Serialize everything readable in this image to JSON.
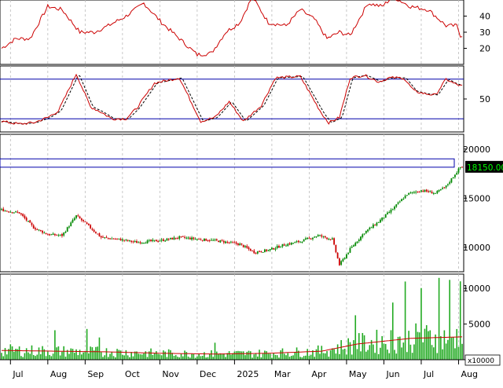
{
  "chart_data": {
    "type": "multi-panel-stock-chart",
    "months": [
      {
        "label": "Jul",
        "index": 5
      },
      {
        "label": "Aug",
        "index": 26
      },
      {
        "label": "Sep",
        "index": 47
      },
      {
        "label": "Oct",
        "index": 68
      },
      {
        "label": "Nov",
        "index": 89
      },
      {
        "label": "Dec",
        "index": 110
      },
      {
        "label": "2025",
        "index": 131
      },
      {
        "label": "Mar",
        "index": 152
      },
      {
        "label": "Apr",
        "index": 173
      },
      {
        "label": "May",
        "index": 194
      },
      {
        "label": "Jun",
        "index": 215
      },
      {
        "label": "Jul",
        "index": 236
      },
      {
        "label": "Aug",
        "index": 257
      }
    ],
    "n_bars": 260,
    "panels": {
      "rsi": {
        "ylim": [
          10,
          50
        ],
        "ticks": [
          20,
          30,
          40
        ],
        "anchors": [
          [
            0,
            20
          ],
          [
            8,
            26
          ],
          [
            16,
            26
          ],
          [
            26,
            46
          ],
          [
            34,
            44
          ],
          [
            44,
            30
          ],
          [
            52,
            30
          ],
          [
            60,
            34
          ],
          [
            70,
            40
          ],
          [
            80,
            48
          ],
          [
            90,
            36
          ],
          [
            100,
            26
          ],
          [
            110,
            16
          ],
          [
            118,
            17
          ],
          [
            126,
            30
          ],
          [
            134,
            36
          ],
          [
            141,
            52
          ],
          [
            150,
            36
          ],
          [
            160,
            34
          ],
          [
            168,
            44
          ],
          [
            176,
            38
          ],
          [
            183,
            26
          ],
          [
            190,
            30
          ],
          [
            196,
            28
          ],
          [
            206,
            48
          ],
          [
            214,
            46
          ],
          [
            220,
            52
          ],
          [
            230,
            46
          ],
          [
            240,
            44
          ],
          [
            250,
            34
          ],
          [
            256,
            34
          ],
          [
            258,
            28
          ]
        ]
      },
      "stoch": {
        "ylim": [
          0,
          100
        ],
        "ticks": [
          50
        ],
        "upper_level": 80,
        "lower_level": 20,
        "anchors": [
          [
            0,
            16
          ],
          [
            10,
            12
          ],
          [
            18,
            14
          ],
          [
            26,
            22
          ],
          [
            32,
            32
          ],
          [
            42,
            88
          ],
          [
            50,
            38
          ],
          [
            56,
            30
          ],
          [
            62,
            20
          ],
          [
            70,
            20
          ],
          [
            76,
            36
          ],
          [
            86,
            74
          ],
          [
            100,
            82
          ],
          [
            112,
            16
          ],
          [
            120,
            22
          ],
          [
            128,
            46
          ],
          [
            136,
            16
          ],
          [
            146,
            40
          ],
          [
            154,
            82
          ],
          [
            168,
            84
          ],
          [
            180,
            28
          ],
          [
            184,
            14
          ],
          [
            190,
            22
          ],
          [
            196,
            82
          ],
          [
            204,
            86
          ],
          [
            212,
            76
          ],
          [
            218,
            82
          ],
          [
            226,
            82
          ],
          [
            232,
            62
          ],
          [
            238,
            58
          ],
          [
            244,
            56
          ],
          [
            250,
            80
          ],
          [
            254,
            74
          ],
          [
            258,
            70
          ]
        ]
      },
      "price": {
        "ylim": [
          7500,
          21500
        ],
        "ticks": [
          10000,
          15000,
          20000
        ],
        "last_value_label": "18150.00",
        "resistance_band": [
          18150,
          19000
        ],
        "anchors": [
          [
            0,
            13800
          ],
          [
            10,
            13500
          ],
          [
            18,
            12000
          ],
          [
            26,
            11300
          ],
          [
            34,
            11200
          ],
          [
            42,
            13200
          ],
          [
            48,
            12300
          ],
          [
            56,
            11000
          ],
          [
            66,
            10800
          ],
          [
            76,
            10500
          ],
          [
            90,
            10700
          ],
          [
            100,
            11000
          ],
          [
            112,
            10800
          ],
          [
            124,
            10600
          ],
          [
            134,
            10300
          ],
          [
            142,
            9500
          ],
          [
            150,
            9700
          ],
          [
            158,
            10200
          ],
          [
            168,
            10600
          ],
          [
            178,
            11200
          ],
          [
            186,
            10800
          ],
          [
            190,
            8200
          ],
          [
            196,
            9800
          ],
          [
            204,
            11500
          ],
          [
            212,
            12600
          ],
          [
            220,
            13900
          ],
          [
            228,
            15400
          ],
          [
            236,
            15800
          ],
          [
            244,
            15500
          ],
          [
            250,
            16200
          ],
          [
            254,
            17200
          ],
          [
            258,
            18150
          ]
        ]
      },
      "volume": {
        "ylim": [
          0,
          12000
        ],
        "ticks": [
          0,
          5000,
          10000
        ],
        "unit_label": "x10000",
        "ma_anchors": [
          [
            0,
            1300
          ],
          [
            30,
            1200
          ],
          [
            60,
            1100
          ],
          [
            90,
            900
          ],
          [
            120,
            800
          ],
          [
            150,
            900
          ],
          [
            180,
            1200
          ],
          [
            200,
            2200
          ],
          [
            230,
            3000
          ],
          [
            258,
            3200
          ]
        ],
        "spike_indices": [
          30,
          48,
          55,
          120,
          199,
          220,
          227,
          236,
          246,
          252,
          258
        ]
      }
    }
  },
  "colors": {
    "rsi_line": "#cc0000",
    "stoch_k": "#cc0000",
    "stoch_d": "#000000",
    "level_line": "#0000aa",
    "candle_up": "#008800",
    "candle_down": "#cc0000",
    "volume_bar": "#22aa22",
    "volume_ma": "#cc0000",
    "last_value_bg": "#000000",
    "last_value_fg": "#00ff00"
  }
}
